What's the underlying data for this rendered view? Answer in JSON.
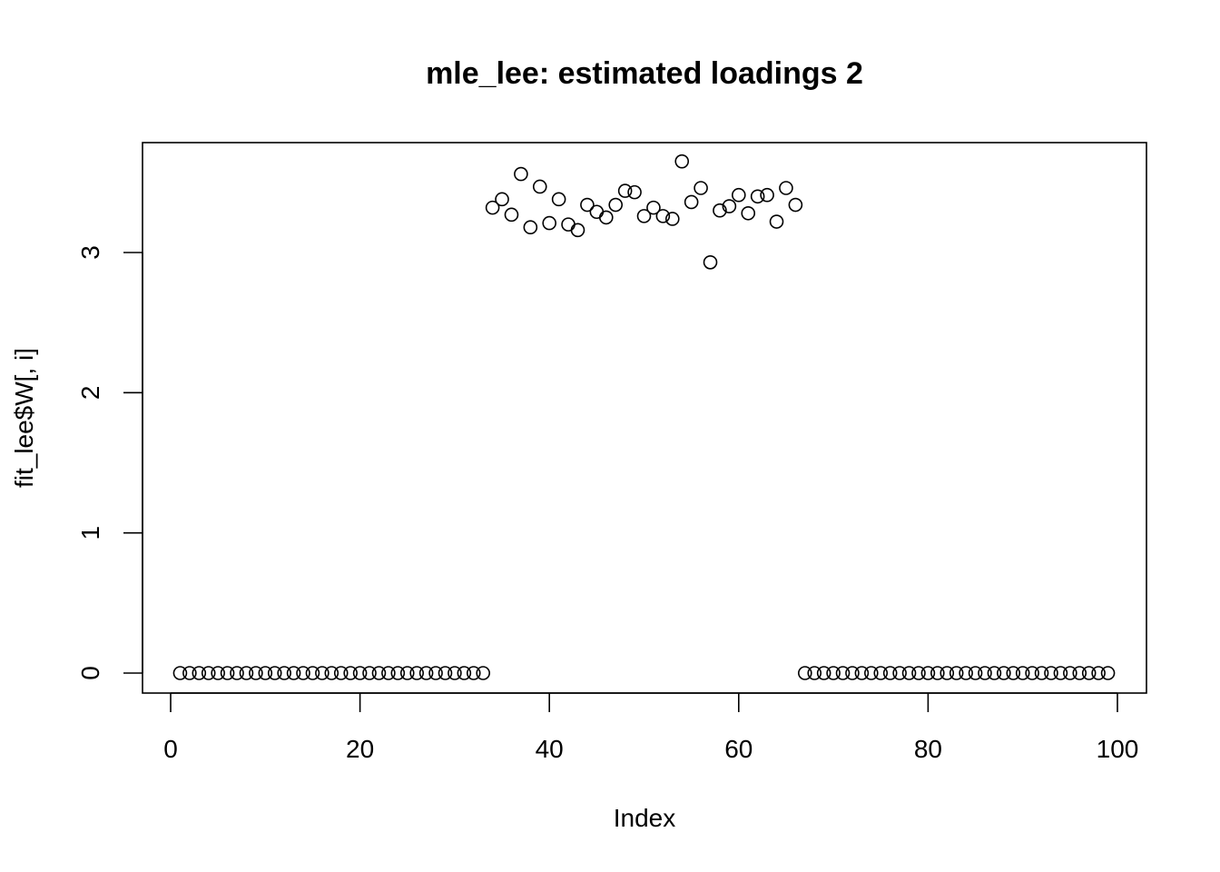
{
  "chart_data": {
    "type": "scatter",
    "title": "mle_lee: estimated loadings 2",
    "xlabel": "Index",
    "ylabel": "fit_lee$W[, i]",
    "xlim": [
      0,
      100
    ],
    "ylim": [
      0,
      3.6
    ],
    "xticks": [
      "0",
      "20",
      "40",
      "60",
      "80",
      "100"
    ],
    "yticks": [
      "0",
      "1",
      "2",
      "3"
    ],
    "grid": false,
    "legend": "none",
    "x": [
      1,
      2,
      3,
      4,
      5,
      6,
      7,
      8,
      9,
      10,
      11,
      12,
      13,
      14,
      15,
      16,
      17,
      18,
      19,
      20,
      21,
      22,
      23,
      24,
      25,
      26,
      27,
      28,
      29,
      30,
      31,
      32,
      33,
      34,
      35,
      36,
      37,
      38,
      39,
      40,
      41,
      42,
      43,
      44,
      45,
      46,
      47,
      48,
      49,
      50,
      51,
      52,
      53,
      54,
      55,
      56,
      57,
      58,
      59,
      60,
      61,
      62,
      63,
      64,
      65,
      66,
      67,
      68,
      69,
      70,
      71,
      72,
      73,
      74,
      75,
      76,
      77,
      78,
      79,
      80,
      81,
      82,
      83,
      84,
      85,
      86,
      87,
      88,
      89,
      90,
      91,
      92,
      93,
      94,
      95,
      96,
      97,
      98,
      99
    ],
    "y": [
      0,
      0,
      0,
      0,
      0,
      0,
      0,
      0,
      0,
      0,
      0,
      0,
      0,
      0,
      0,
      0,
      0,
      0,
      0,
      0,
      0,
      0,
      0,
      0,
      0,
      0,
      0,
      0,
      0,
      0,
      0,
      0,
      0,
      3.32,
      3.38,
      3.27,
      3.56,
      3.18,
      3.47,
      3.21,
      3.38,
      3.2,
      3.16,
      3.34,
      3.29,
      3.25,
      3.34,
      3.44,
      3.43,
      3.26,
      3.32,
      3.26,
      3.24,
      3.65,
      3.36,
      3.46,
      2.93,
      3.3,
      3.33,
      3.41,
      3.28,
      3.4,
      3.41,
      3.22,
      3.46,
      3.34,
      0,
      0,
      0,
      0,
      0,
      0,
      0,
      0,
      0,
      0,
      0,
      0,
      0,
      0,
      0,
      0,
      0,
      0,
      0,
      0,
      0,
      0,
      0,
      0,
      0,
      0,
      0,
      0,
      0,
      0,
      0,
      0,
      0
    ]
  }
}
